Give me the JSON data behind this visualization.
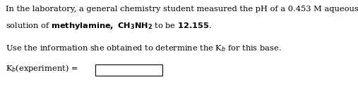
{
  "background_color": "#ffffff",
  "line1": "In the laboratory, a general chemistry student measured the pH of a 0.453 M aqueous",
  "line2": "solution of \\mathbf{methylamine, CH_3NH_2} to be \\mathbf{12.155}.",
  "line3": "Use the information she obtained to determine the K$_b$ for this base.",
  "line4_label": "K$_b$(experiment) =",
  "font_size": 8.2,
  "text_color": "#000000",
  "figwidth": 5.07,
  "figheight": 1.27,
  "dpi": 100
}
